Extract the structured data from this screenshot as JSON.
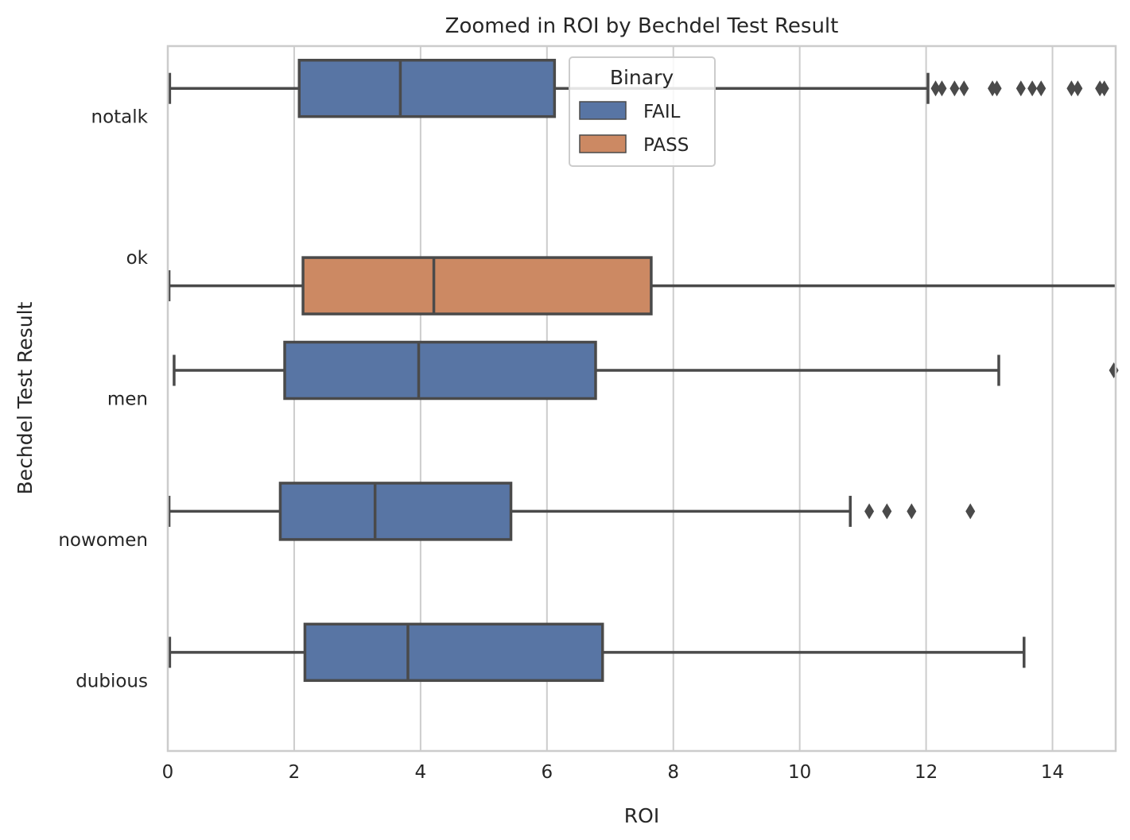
{
  "chart_data": {
    "type": "boxplot",
    "orientation": "horizontal",
    "title": "Zoomed in ROI by Bechdel Test Result",
    "xlabel": "ROI",
    "ylabel": "Bechdel Test Result",
    "xlim": [
      0,
      15
    ],
    "x_ticks": [
      0,
      2,
      4,
      6,
      8,
      10,
      12,
      14
    ],
    "grid": "vertical",
    "categories": [
      "notalk",
      "ok",
      "men",
      "nowomen",
      "dubious"
    ],
    "legend": {
      "title": "Binary",
      "placement": "top-center",
      "entries": [
        {
          "name": "FAIL",
          "color": "#5875a4"
        },
        {
          "name": "PASS",
          "color": "#cc8963"
        }
      ]
    },
    "series": [
      {
        "name": "FAIL",
        "color": "#5875a4",
        "boxes": [
          {
            "category": "notalk",
            "whisker_low": 0.03,
            "q1": 2.08,
            "median": 3.68,
            "q3": 6.12,
            "whisker_high": 12.03,
            "outliers": [
              12.15,
              12.25,
              12.45,
              12.6,
              13.05,
              13.12,
              13.5,
              13.68,
              13.82,
              14.3,
              14.4,
              14.75,
              14.82
            ]
          },
          {
            "category": "men",
            "whisker_low": 0.1,
            "q1": 1.85,
            "median": 3.97,
            "q3": 6.77,
            "whisker_high": 13.15,
            "outliers": [
              14.97
            ]
          },
          {
            "category": "nowomen",
            "whisker_low": 0.02,
            "q1": 1.78,
            "median": 3.28,
            "q3": 5.43,
            "whisker_high": 10.8,
            "outliers": [
              11.1,
              11.38,
              11.77,
              12.7
            ]
          },
          {
            "category": "dubious",
            "whisker_low": 0.03,
            "q1": 2.17,
            "median": 3.8,
            "q3": 6.88,
            "whisker_high": 13.55,
            "outliers": []
          }
        ]
      },
      {
        "name": "PASS",
        "color": "#cc8963",
        "boxes": [
          {
            "category": "ok",
            "whisker_low": 0.02,
            "q1": 2.14,
            "median": 4.21,
            "q3": 7.65,
            "whisker_high": 15.2,
            "outliers": []
          }
        ]
      }
    ]
  }
}
